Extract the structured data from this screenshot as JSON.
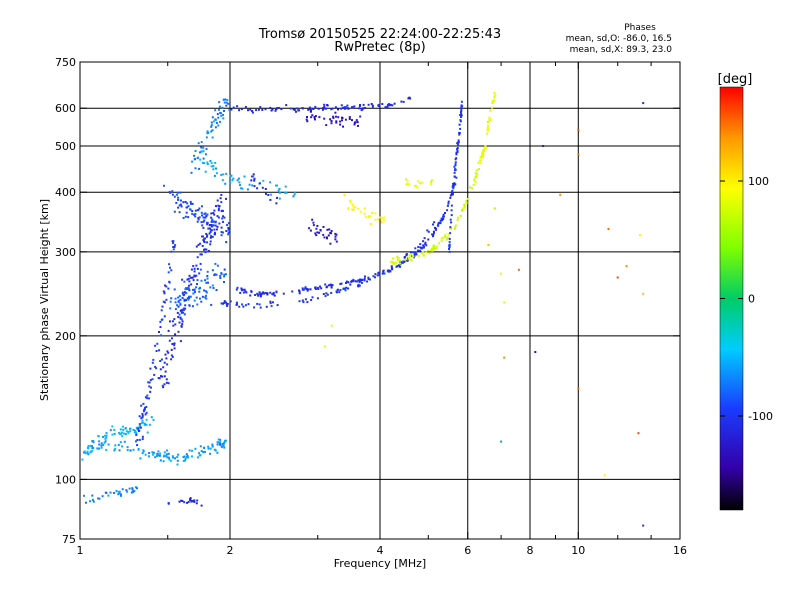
{
  "chart_data": {
    "type": "scatter",
    "title": "Tromsø 20150525 22:24:00-22:25:43",
    "subtitle": "RwPretec (8p)",
    "stats": {
      "heading": "Phases",
      "line1": "mean, sd,O: -86.0, 16.5",
      "line2": "mean, sd,X:  89.3, 23.0"
    },
    "xlabel": "Frequency [MHz]",
    "ylabel": "Stationary phase Virtual Height [km]",
    "x_scale": "log",
    "y_scale": "log",
    "xlim": [
      1,
      16
    ],
    "ylim": [
      75,
      750
    ],
    "x_ticks": [
      1,
      2,
      4,
      6,
      8,
      10,
      16
    ],
    "x_minor_ticks": [
      1.5,
      3,
      5,
      7,
      9,
      12,
      14
    ],
    "y_ticks": [
      75,
      100,
      200,
      300,
      400,
      500,
      600,
      750
    ],
    "x_tick_labels": [
      "1",
      "2",
      "4",
      "6",
      "8",
      "10",
      "16"
    ],
    "y_tick_labels": [
      "75",
      "100",
      "200",
      "300",
      "400",
      "500",
      "600",
      "750"
    ],
    "grid": true,
    "grid_x": [
      2,
      4,
      6,
      8,
      10
    ],
    "grid_y": [
      100,
      200,
      300,
      400,
      500,
      600
    ],
    "colorbar": {
      "label": "[deg]",
      "range": [
        -180,
        180
      ],
      "ticks": [
        100,
        0,
        -100
      ],
      "tick_labels": [
        "100",
        "0",
        "-100"
      ]
    },
    "series": [
      {
        "segments": [
          {
            "x": [
              1.02,
              1.1,
              1.2,
              1.3,
              1.4,
              1.5,
              1.6,
              1.7,
              1.8,
              1.92,
              1.98
            ],
            "y": [
              114,
              118,
              117,
              114,
              113,
              112,
              111,
              113,
              116,
              118,
              119
            ],
            "phase": -60,
            "spread": 0.03,
            "n": 130
          },
          {
            "x": [
              1.0,
              1.1,
              1.2,
              1.3,
              1.4
            ],
            "y": [
              110,
              123,
              126,
              128,
              132
            ],
            "phase": -50,
            "spread": 0.035,
            "n": 60
          },
          {
            "x": [
              1.02,
              1.1,
              1.2,
              1.3
            ],
            "y": [
              90,
              92,
              94,
              96
            ],
            "phase": -70,
            "spread": 0.02,
            "n": 35
          },
          {
            "x": [
              1.5,
              1.6,
              1.7,
              1.8
            ],
            "y": [
              89,
              90,
              90,
              89
            ],
            "phase": -110,
            "spread": 0.015,
            "n": 20
          },
          {
            "x": [
              1.3,
              1.35,
              1.4,
              1.45,
              1.5,
              1.55
            ],
            "y": [
              120,
              140,
              170,
              210,
              260,
              320
            ],
            "phase": -95,
            "spread": 0.05,
            "n": 80
          },
          {
            "x": [
              1.45,
              1.55,
              1.65,
              1.75,
              1.85,
              1.95
            ],
            "y": [
              160,
              200,
              250,
              300,
              340,
              380
            ],
            "phase": -105,
            "spread": 0.08,
            "n": 160
          },
          {
            "x": [
              1.5,
              1.6,
              1.7,
              1.8,
              1.9,
              2.0
            ],
            "y": [
              400,
              380,
              360,
              350,
              340,
              330
            ],
            "phase": -90,
            "spread": 0.06,
            "n": 90
          },
          {
            "x": [
              1.55,
              1.65,
              1.75,
              1.85,
              1.95
            ],
            "y": [
              230,
              240,
              250,
              260,
              270
            ],
            "phase": -80,
            "spread": 0.09,
            "n": 90
          },
          {
            "x": [
              1.7,
              1.8,
              1.9,
              2.0
            ],
            "y": [
              460,
              520,
              580,
              620
            ],
            "phase": -70,
            "spread": 0.06,
            "n": 60
          },
          {
            "x": [
              1.75,
              1.85,
              1.95,
              2.1,
              2.4,
              2.7
            ],
            "y": [
              470,
              450,
              430,
              420,
              410,
              400
            ],
            "phase": -55,
            "spread": 0.04,
            "n": 55
          },
          {
            "x": [
              2.05,
              2.2,
              2.4,
              2.7,
              3.0,
              3.4,
              3.8,
              4.2,
              4.6,
              5.0,
              5.4,
              5.7
            ],
            "y": [
              250,
              246,
              245,
              248,
              252,
              258,
              265,
              275,
              290,
              315,
              360,
              430
            ],
            "phase": -105,
            "spread": 0.012,
            "n": 180
          },
          {
            "x": [
              1.9,
              2.1,
              2.4,
              2.8,
              3.2,
              3.6,
              4.0,
              4.4,
              4.8,
              5.2
            ],
            "y": [
              235,
              232,
              232,
              236,
              245,
              255,
              268,
              285,
              310,
              350
            ],
            "phase": -100,
            "spread": 0.015,
            "n": 90
          },
          {
            "x": [
              2.0,
              2.3,
              2.6,
              3.0,
              3.4,
              3.8,
              4.2,
              4.6
            ],
            "y": [
              600,
              598,
              596,
              600,
              602,
              605,
              610,
              630
            ],
            "phase": -110,
            "spread": 0.015,
            "n": 100
          },
          {
            "x": [
              2.8,
              3.1,
              3.4,
              3.7
            ],
            "y": [
              575,
              570,
              565,
              560
            ],
            "phase": -125,
            "spread": 0.03,
            "n": 40
          },
          {
            "x": [
              5.5,
              5.6,
              5.7,
              5.8,
              5.85
            ],
            "y": [
              300,
              400,
              480,
              560,
              620
            ],
            "phase": -100,
            "spread": 0.01,
            "n": 70
          },
          {
            "x": [
              4.2,
              4.5,
              4.8,
              5.1,
              5.4,
              5.7,
              6.0,
              6.3
            ],
            "y": [
              285,
              290,
              295,
              305,
              320,
              345,
              385,
              450
            ],
            "phase": 75,
            "spread": 0.02,
            "n": 90
          },
          {
            "x": [
              6.3,
              6.5,
              6.6,
              6.7,
              6.8
            ],
            "y": [
              450,
              500,
              550,
              600,
              640
            ],
            "phase": 85,
            "spread": 0.015,
            "n": 45
          },
          {
            "x": [
              3.4,
              3.6,
              3.8,
              4.0,
              4.2
            ],
            "y": [
              380,
              370,
              360,
              355,
              350
            ],
            "phase": 95,
            "spread": 0.04,
            "n": 30
          },
          {
            "x": [
              2.9,
              3.1,
              3.3
            ],
            "y": [
              340,
              330,
              320
            ],
            "phase": -125,
            "spread": 0.04,
            "n": 30
          },
          {
            "x": [
              4.5,
              4.8,
              5.1
            ],
            "y": [
              420,
              415,
              418
            ],
            "phase": 85,
            "spread": 0.02,
            "n": 15
          },
          {
            "x": [
              2.2,
              2.5
            ],
            "y": [
              430,
              380
            ],
            "phase": -110,
            "spread": 0.03,
            "n": 15
          }
        ],
        "isolated": [
          [
            10.0,
            540,
            160
          ],
          [
            10.0,
            480,
            150
          ],
          [
            9.2,
            395,
            140
          ],
          [
            11.5,
            335,
            150
          ],
          [
            12.5,
            280,
            140
          ],
          [
            12.0,
            265,
            160
          ],
          [
            13.5,
            245,
            120
          ],
          [
            10.0,
            155,
            150
          ],
          [
            11.3,
            102,
            100
          ],
          [
            8.2,
            185,
            -130
          ],
          [
            7.0,
            270,
            100
          ],
          [
            7.1,
            180,
            140
          ],
          [
            13.5,
            615,
            -110
          ],
          [
            13.3,
            325,
            100
          ],
          [
            13.2,
            125,
            160
          ],
          [
            13.5,
            80,
            -100
          ],
          [
            7.6,
            275,
            150
          ],
          [
            6.6,
            310,
            120
          ],
          [
            7.1,
            235,
            80
          ],
          [
            3.1,
            190,
            80
          ],
          [
            3.2,
            210,
            80
          ],
          [
            7.0,
            120,
            -60
          ],
          [
            8.5,
            500,
            -120
          ],
          [
            6.8,
            370,
            60
          ]
        ]
      }
    ]
  }
}
